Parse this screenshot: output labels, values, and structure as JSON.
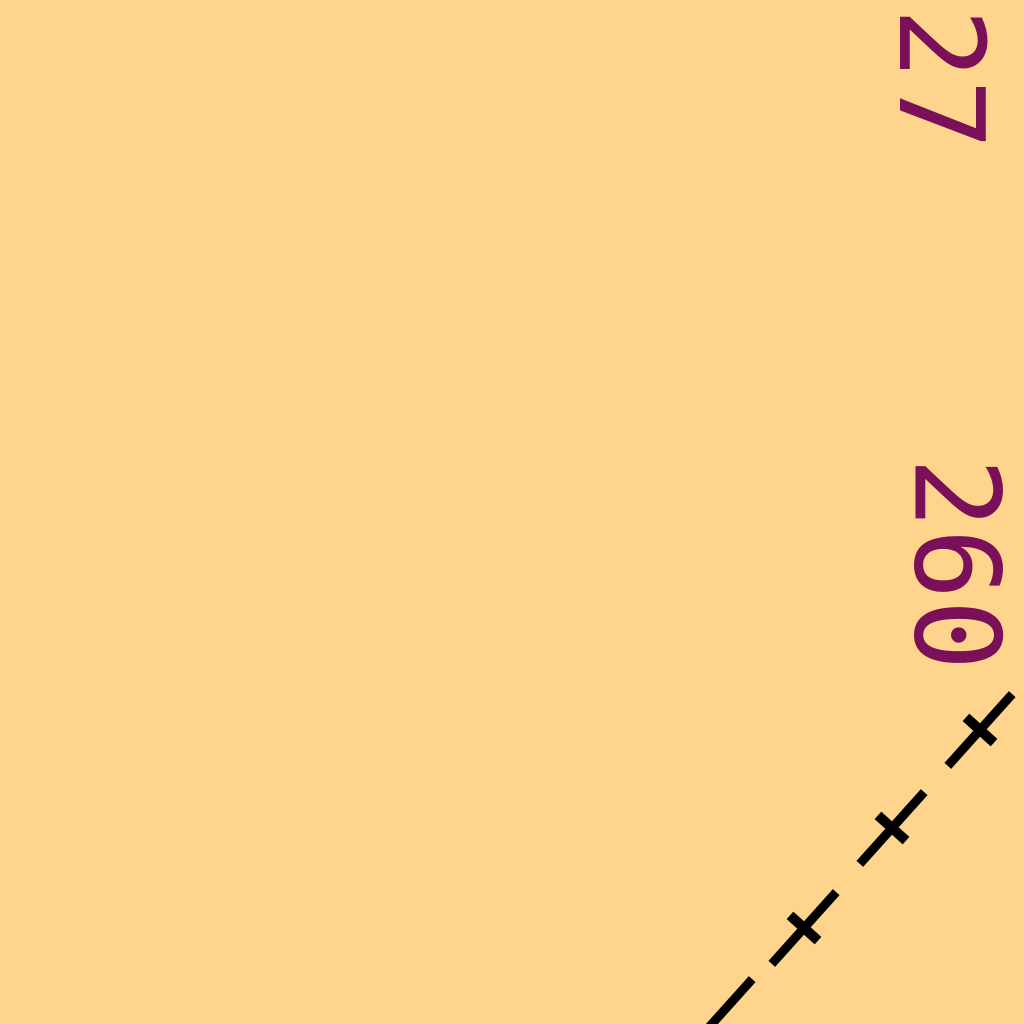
{
  "map": {
    "background_color": "#FFD58D",
    "label_color": "#7A0F5A",
    "line_color": "#000000",
    "labels": [
      {
        "text": "27"
      },
      {
        "text": "260"
      }
    ],
    "features": [
      {
        "type": "boundary-line",
        "style": "dash-cross",
        "label": ""
      }
    ]
  }
}
